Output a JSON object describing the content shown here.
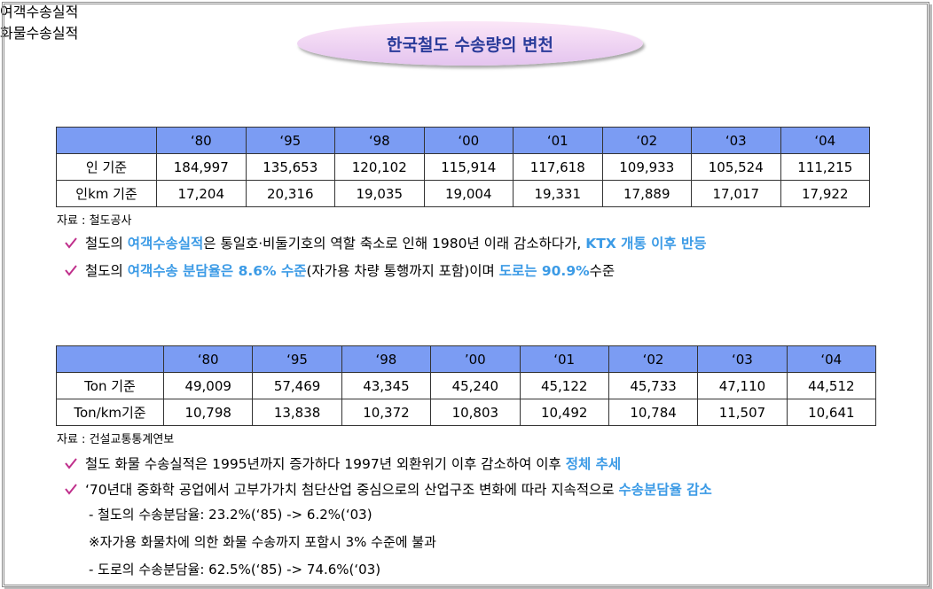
{
  "title": "한국철도 수송량의 변천",
  "sections": [
    {
      "heading": "여객수송실적",
      "table": {
        "columns": [
          "‘80",
          "‘95",
          "‘98",
          "‘00",
          "‘01",
          "‘02",
          "‘03",
          "‘04"
        ],
        "rows": [
          {
            "label": "인 기준",
            "cells": [
              "184,997",
              "135,653",
              "120,102",
              "115,914",
              "117,618",
              "109,933",
              "105,524",
              "111,215"
            ]
          },
          {
            "label": "인km 기준",
            "cells": [
              "17,204",
              "20,316",
              "19,035",
              "19,004",
              "19,331",
              "17,889",
              "17,017",
              "17,922"
            ]
          }
        ]
      },
      "source": "자료 : 철도공사",
      "bullets": [
        {
          "segments": [
            {
              "text": "철도의 ",
              "highlight": false
            },
            {
              "text": "여객수송실적",
              "highlight": true
            },
            {
              "text": "은 통일호·비둘기호의 역할 축소로 인해 1980년 이래 감소하다가, ",
              "highlight": false
            },
            {
              "text": "KTX 개통 이후 반등",
              "highlight": true
            }
          ]
        },
        {
          "segments": [
            {
              "text": "철도의 ",
              "highlight": false
            },
            {
              "text": "여객수송 분담율은 8.6% 수준",
              "highlight": true
            },
            {
              "text": "(자가용 차량 통행까지 포함)이며 ",
              "highlight": false
            },
            {
              "text": "도로는 90.9%",
              "highlight": true
            },
            {
              "text": "수준",
              "highlight": false
            }
          ]
        }
      ],
      "notes": []
    },
    {
      "heading": "화물수송실적",
      "table": {
        "columns": [
          "‘80",
          "‘95",
          "‘98",
          "’00",
          "‘01",
          "‘02",
          "‘03",
          "‘04"
        ],
        "rows": [
          {
            "label": "Ton 기준",
            "cells": [
              "49,009",
              "57,469",
              "43,345",
              "45,240",
              "45,122",
              "45,733",
              "47,110",
              "44,512"
            ]
          },
          {
            "label": "Ton/km기준",
            "cells": [
              "10,798",
              "13,838",
              "10,372",
              "10,803",
              "10,492",
              "10,784",
              "11,507",
              "10,641"
            ]
          }
        ]
      },
      "source": "자료 : 건설교통통계연보",
      "bullets": [
        {
          "segments": [
            {
              "text": "철도 화물 수송실적은 1995년까지 증가하다 1997년 외환위기 이후 감소하여 이후 ",
              "highlight": false
            },
            {
              "text": "정체 추세",
              "highlight": true
            }
          ]
        },
        {
          "segments": [
            {
              "text": "‘70년대 중화학 공업에서 고부가가치 첨단산업 중심으로의 산업구조 변화에 따라 지속적으로 ",
              "highlight": false
            },
            {
              "text": "수송분담율 감소",
              "highlight": true
            }
          ]
        }
      ],
      "notes": [
        "- 철도의 수송분담율: 23.2%(‘85) -> 6.2%(‘03)",
        "※자가용 화물차에 의한 화물 수송까지 포함시 3% 수준에 불과",
        "- 도로의 수송분담율: 62.5%(‘85) -> 74.6%(‘03)"
      ]
    }
  ]
}
